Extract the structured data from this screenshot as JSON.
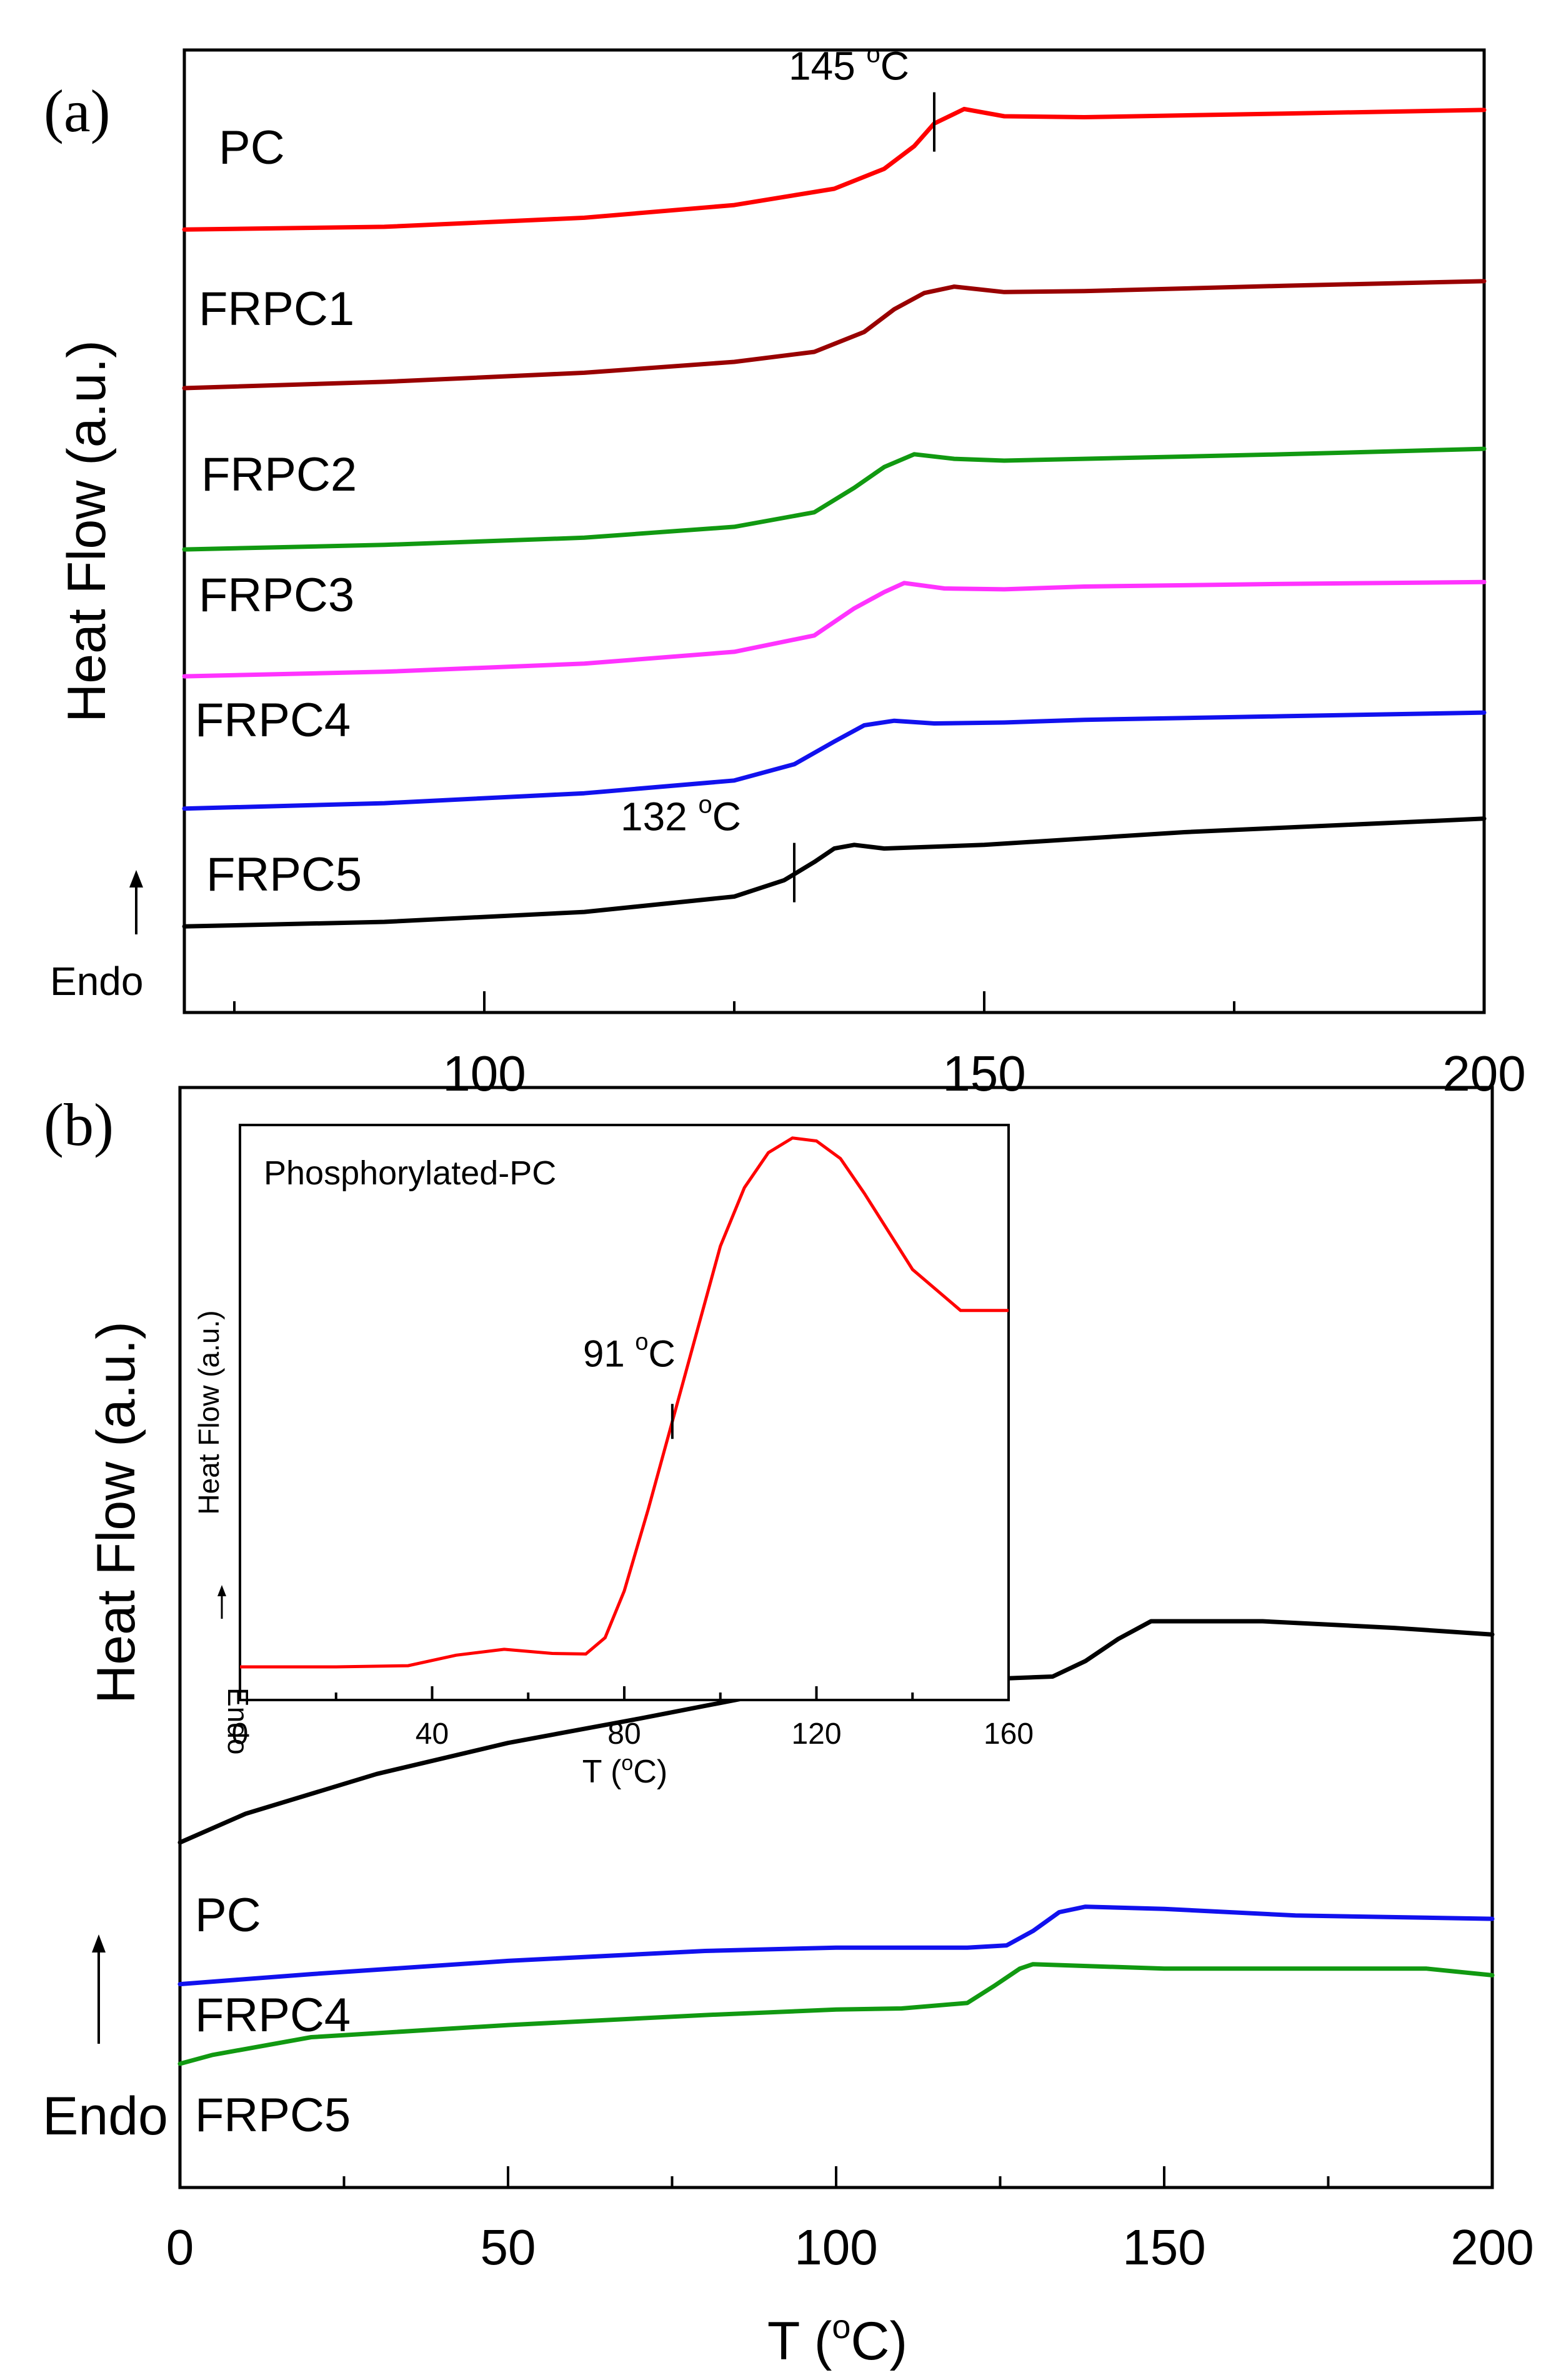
{
  "chart_data": [
    {
      "panel": "(a)",
      "type": "line",
      "ylabel": "Heat Flow  (a.u.)",
      "xlim": [
        70,
        200
      ],
      "xticks": [
        100,
        150,
        200
      ],
      "endo_label": "Endo",
      "series": [
        {
          "name": "PC",
          "color": "#ff0000",
          "x": [
            70,
            90,
            110,
            125,
            135,
            140,
            143,
            145,
            148,
            152,
            160,
            180,
            200
          ],
          "y": [
            8.55,
            8.58,
            8.68,
            8.82,
            9.0,
            9.22,
            9.47,
            9.72,
            9.88,
            9.8,
            9.79,
            9.83,
            9.87
          ]
        },
        {
          "name": "FRPC1",
          "color": "#990000",
          "x": [
            70,
            90,
            110,
            125,
            133,
            138,
            141,
            144,
            147,
            152,
            160,
            180,
            200
          ],
          "y": [
            6.8,
            6.87,
            6.97,
            7.09,
            7.2,
            7.42,
            7.67,
            7.85,
            7.92,
            7.86,
            7.87,
            7.93,
            7.98
          ]
        },
        {
          "name": "FRPC2",
          "color": "#119911",
          "x": [
            70,
            90,
            110,
            125,
            133,
            137,
            140,
            143,
            147,
            152,
            160,
            180,
            200
          ],
          "y": [
            5.02,
            5.07,
            5.15,
            5.27,
            5.43,
            5.7,
            5.93,
            6.07,
            6.02,
            6.0,
            6.02,
            6.07,
            6.13
          ]
        },
        {
          "name": "FRPC3",
          "color": "#ff33ff",
          "x": [
            70,
            90,
            110,
            125,
            133,
            137,
            140,
            142,
            146,
            152,
            160,
            180,
            200
          ],
          "y": [
            3.62,
            3.67,
            3.76,
            3.89,
            4.07,
            4.37,
            4.55,
            4.65,
            4.59,
            4.58,
            4.61,
            4.64,
            4.66
          ]
        },
        {
          "name": "FRPC4",
          "color": "#1111ee",
          "x": [
            70,
            90,
            110,
            125,
            131,
            135,
            138,
            141,
            145,
            152,
            160,
            180,
            200
          ],
          "y": [
            2.16,
            2.22,
            2.33,
            2.47,
            2.65,
            2.9,
            3.08,
            3.13,
            3.1,
            3.11,
            3.14,
            3.18,
            3.22
          ]
        },
        {
          "name": "FRPC5",
          "color": "#000000",
          "x": [
            70,
            90,
            110,
            125,
            130,
            133,
            135,
            137,
            140,
            150,
            170,
            200
          ],
          "y": [
            0.86,
            0.91,
            1.02,
            1.19,
            1.37,
            1.57,
            1.72,
            1.76,
            1.72,
            1.76,
            1.9,
            2.05
          ]
        }
      ],
      "annotations": [
        {
          "text": "145 °C",
          "label_base": "145 ",
          "label_sup": "o",
          "label_unit": "C",
          "x": 145,
          "series": "PC"
        },
        {
          "text": "132 °C",
          "label_base": "132 ",
          "label_sup": "o",
          "label_unit": "C",
          "x": 131,
          "series": "FRPC5"
        }
      ]
    },
    {
      "panel": "(b)",
      "type": "line",
      "ylabel": "Heat Flow  (a.u.)",
      "xlabel": "T (°C)",
      "xlabel_base": "T (",
      "xlabel_sup": "o",
      "xlabel_end": "C)",
      "xlim": [
        0,
        200
      ],
      "xticks": [
        0,
        50,
        100,
        150,
        200
      ],
      "endo_label": "Endo",
      "series": [
        {
          "name": "PC",
          "color": "#000000",
          "x": [
            0,
            10,
            30,
            50,
            70,
            90,
            100,
            120,
            133,
            138,
            143,
            148,
            165,
            185,
            200
          ],
          "y": [
            2.0,
            2.26,
            2.62,
            2.9,
            3.12,
            3.35,
            3.44,
            3.47,
            3.5,
            3.64,
            3.84,
            4.0,
            4.0,
            3.94,
            3.88
          ]
        },
        {
          "name": "FRPC4",
          "color": "#1111ee",
          "x": [
            0,
            20,
            50,
            80,
            100,
            120,
            126,
            130,
            134,
            138,
            150,
            170,
            200
          ],
          "y": [
            0.72,
            0.81,
            0.93,
            1.02,
            1.05,
            1.05,
            1.07,
            1.2,
            1.37,
            1.42,
            1.4,
            1.34,
            1.31
          ]
        },
        {
          "name": "FRPC5",
          "color": "#119911",
          "x": [
            0,
            5,
            20,
            50,
            80,
            100,
            110,
            120,
            124,
            128,
            130,
            150,
            190,
            200
          ],
          "y": [
            0.0,
            0.08,
            0.24,
            0.35,
            0.44,
            0.49,
            0.5,
            0.55,
            0.7,
            0.86,
            0.9,
            0.86,
            0.86,
            0.8
          ]
        }
      ]
    },
    {
      "panel": "inset",
      "type": "line",
      "title": "Phosphorylated-PC",
      "ylabel": "Heat Flow  (a.u.)",
      "xlabel": "T (°C)",
      "xlabel_base": "T (",
      "xlabel_sup": "o",
      "xlabel_end": "C)",
      "xlim": [
        0,
        160
      ],
      "xticks": [
        0,
        40,
        80,
        120,
        160
      ],
      "endo_label": "Endo",
      "series": [
        {
          "name": "Phosphorylated-PC",
          "color": "#ff0000",
          "x": [
            0,
            20,
            35,
            45,
            55,
            65,
            72,
            76,
            80,
            85,
            90,
            95,
            100,
            105,
            110,
            115,
            120,
            125,
            130,
            140,
            150,
            160
          ],
          "y": [
            0.5,
            0.5,
            0.52,
            0.7,
            0.8,
            0.73,
            0.72,
            1.0,
            1.8,
            3.2,
            4.7,
            6.2,
            7.7,
            8.7,
            9.3,
            9.55,
            9.5,
            9.2,
            8.6,
            7.3,
            6.6,
            6.6
          ]
        }
      ],
      "annotations": [
        {
          "text": "91 °C",
          "label_base": "91 ",
          "label_sup": "o",
          "label_unit": "C",
          "x": 90
        }
      ]
    }
  ]
}
